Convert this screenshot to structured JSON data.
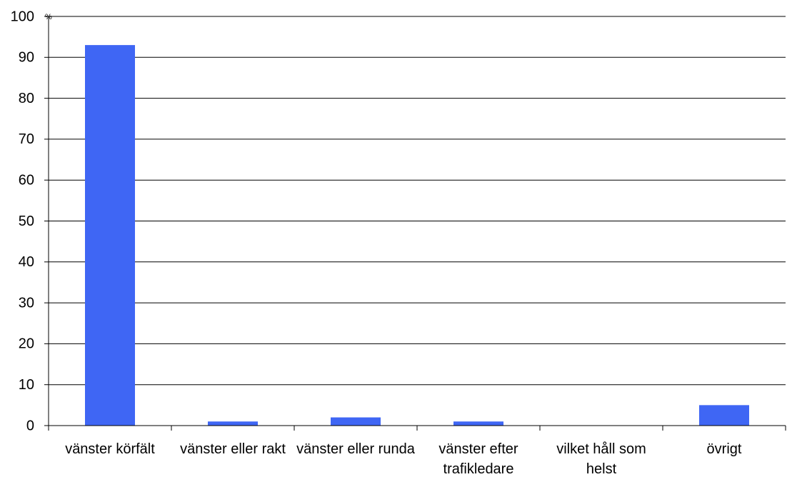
{
  "chart_data": {
    "type": "bar",
    "unit": "%",
    "categories": [
      "vänster körfält",
      "vänster eller rakt",
      "vänster eller runda",
      "vänster efter trafikledare",
      "vilket håll som helst",
      "övrigt"
    ],
    "values": [
      93,
      1,
      2,
      1,
      0,
      5
    ],
    "color": "#3f66f4",
    "ylim": [
      0,
      100
    ],
    "yticks": [
      0,
      10,
      20,
      30,
      40,
      50,
      60,
      70,
      80,
      90,
      100
    ],
    "grid": true
  }
}
